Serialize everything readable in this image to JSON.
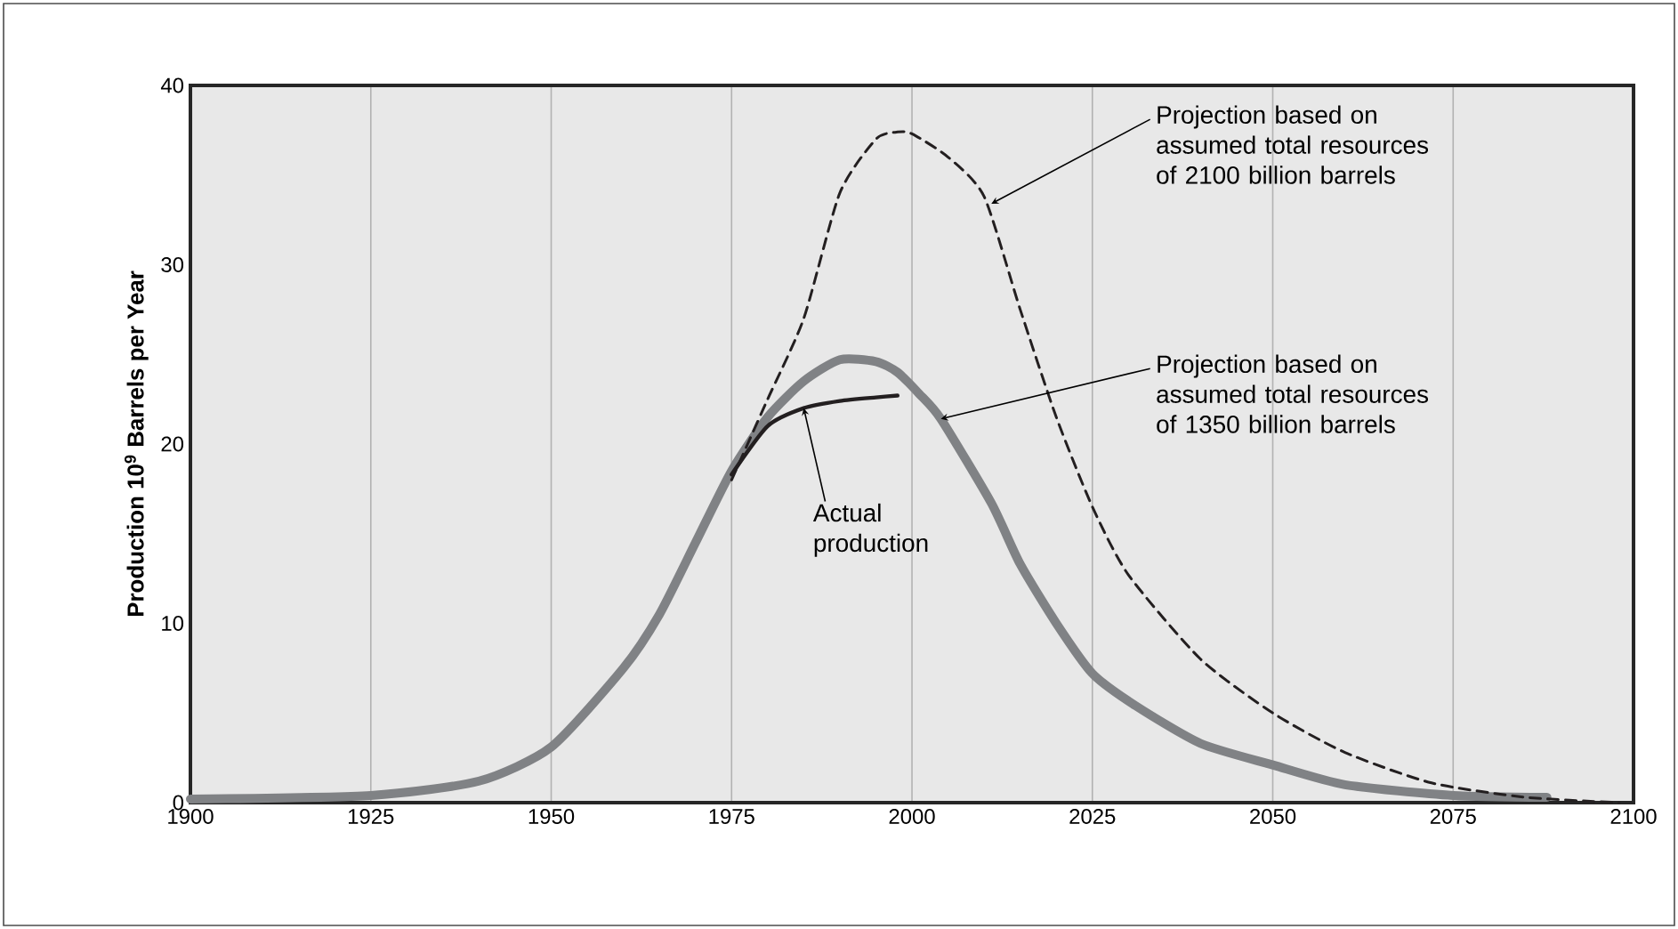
{
  "chart_data": {
    "type": "line",
    "ylabel": "**Production 10$^{9}$ Barrels per Year**",
    "xlim": [
      1900,
      2100
    ],
    "ylim": [
      0,
      40
    ],
    "xticks": [
      1900,
      1925,
      1950,
      1975,
      2000,
      2025,
      2050,
      2075,
      2100
    ],
    "yticks": [
      0,
      10,
      20,
      30,
      40
    ],
    "grid": "x",
    "marker": "none",
    "series": [
      {
        "color": "#808285",
        "line_style": "solid",
        "x": [
          1900,
          1925,
          1940,
          1950,
          1960,
          1965,
          1970,
          1975,
          1980,
          1985,
          1990,
          1995,
          1998,
          2001,
          2004,
          2011,
          2015,
          2020,
          2025,
          2031,
          2040,
          2050,
          2060,
          2075,
          2088
        ],
        "values": [
          0.2,
          0.4,
          1.2,
          3.1,
          7.5,
          10.5,
          14.5,
          18.5,
          21.5,
          23.5,
          24.7,
          24.6,
          24,
          22.8,
          21.4,
          16.7,
          13.3,
          10,
          7.2,
          5.4,
          3.3,
          2.1,
          1.0,
          0.4,
          0.3
        ]
      },
      {
        "color": "#231f20",
        "line_style": "dashed",
        "x": [
          1975,
          1980,
          1985,
          1990,
          1995,
          1998,
          2000,
          2005,
          2010,
          2015,
          2020,
          2025,
          2030,
          2040,
          2050,
          2060,
          2072,
          2085,
          2098
        ],
        "values": [
          18,
          22.5,
          27,
          34,
          37,
          37.4,
          37.3,
          36,
          33.8,
          27.5,
          21.5,
          16.5,
          12.7,
          8,
          5,
          2.8,
          1.1,
          0.3,
          0
        ]
      },
      {
        "color": "#231f20",
        "line_style": "solid",
        "x": [
          1975,
          1980,
          1985,
          1990,
          1995,
          1998
        ],
        "values": [
          18.3,
          21,
          22,
          22.4,
          22.6,
          22.7
        ]
      }
    ],
    "annotations": [
      {
        "text": "Projection based on assumed total resources of 2100 billion barrels",
        "x": 2011,
        "y": 33.4
      },
      {
        "text": "Projection based on assumed total resources of 1350 billion barrels",
        "x": 2004,
        "y": 21.4
      },
      {
        "text": "Actual production",
        "x": 1985,
        "y": 22
      }
    ]
  }
}
